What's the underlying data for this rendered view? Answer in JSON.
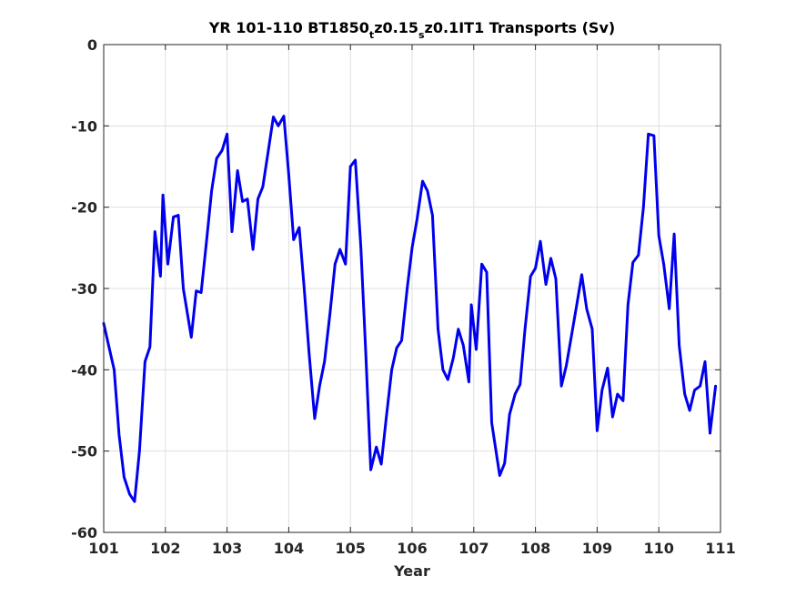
{
  "chart_data": {
    "type": "line",
    "title_parts": [
      "YR 101-110 BT1850",
      "t",
      "z0.15",
      "s",
      "z0.1IT1 Transports (Sv)"
    ],
    "xlabel": "Year",
    "ylabel": "",
    "xlim": [
      101,
      111
    ],
    "ylim": [
      -60,
      0
    ],
    "xticks": [
      101,
      102,
      103,
      104,
      105,
      106,
      107,
      108,
      109,
      110,
      111
    ],
    "yticks": [
      0,
      -10,
      -20,
      -30,
      -40,
      -50,
      -60
    ],
    "grid": true,
    "line_color": "#0000ee",
    "series": [
      {
        "points": [
          [
            101.0,
            -34.3
          ],
          [
            101.08,
            -37.0
          ],
          [
            101.17,
            -40.0
          ],
          [
            101.25,
            -48.0
          ],
          [
            101.33,
            -53.2
          ],
          [
            101.42,
            -55.3
          ],
          [
            101.5,
            -56.2
          ],
          [
            101.58,
            -50.0
          ],
          [
            101.67,
            -39.0
          ],
          [
            101.75,
            -37.2
          ],
          [
            101.83,
            -23.0
          ],
          [
            101.92,
            -28.5
          ],
          [
            101.96,
            -18.5
          ],
          [
            102.04,
            -27.0
          ],
          [
            102.13,
            -21.2
          ],
          [
            102.21,
            -21.0
          ],
          [
            102.29,
            -30.0
          ],
          [
            102.42,
            -36.0
          ],
          [
            102.5,
            -30.3
          ],
          [
            102.58,
            -30.5
          ],
          [
            102.67,
            -24.0
          ],
          [
            102.75,
            -18.0
          ],
          [
            102.83,
            -14.0
          ],
          [
            102.92,
            -13.0
          ],
          [
            103.0,
            -11.0
          ],
          [
            103.08,
            -23.0
          ],
          [
            103.17,
            -15.5
          ],
          [
            103.25,
            -19.3
          ],
          [
            103.33,
            -19.0
          ],
          [
            103.42,
            -25.2
          ],
          [
            103.5,
            -19.0
          ],
          [
            103.58,
            -17.5
          ],
          [
            103.67,
            -13.0
          ],
          [
            103.75,
            -8.9
          ],
          [
            103.83,
            -10.0
          ],
          [
            103.92,
            -8.8
          ],
          [
            104.0,
            -16.0
          ],
          [
            104.08,
            -24.0
          ],
          [
            104.17,
            -22.5
          ],
          [
            104.25,
            -30.0
          ],
          [
            104.33,
            -38.0
          ],
          [
            104.42,
            -46.0
          ],
          [
            104.5,
            -42.0
          ],
          [
            104.58,
            -39.0
          ],
          [
            104.67,
            -33.0
          ],
          [
            104.75,
            -27.0
          ],
          [
            104.83,
            -25.2
          ],
          [
            104.92,
            -27.0
          ],
          [
            105.0,
            -15.0
          ],
          [
            105.08,
            -14.2
          ],
          [
            105.17,
            -25.0
          ],
          [
            105.25,
            -38.0
          ],
          [
            105.33,
            -52.3
          ],
          [
            105.42,
            -49.5
          ],
          [
            105.5,
            -51.6
          ],
          [
            105.58,
            -46.0
          ],
          [
            105.67,
            -40.0
          ],
          [
            105.75,
            -37.3
          ],
          [
            105.83,
            -36.4
          ],
          [
            105.92,
            -30.0
          ],
          [
            106.0,
            -25.0
          ],
          [
            106.08,
            -21.5
          ],
          [
            106.17,
            -16.8
          ],
          [
            106.25,
            -18.0
          ],
          [
            106.33,
            -21.0
          ],
          [
            106.42,
            -35.0
          ],
          [
            106.5,
            -40.0
          ],
          [
            106.58,
            -41.2
          ],
          [
            106.67,
            -38.5
          ],
          [
            106.75,
            -35.0
          ],
          [
            106.83,
            -37.0
          ],
          [
            106.92,
            -41.5
          ],
          [
            106.96,
            -32.0
          ],
          [
            107.04,
            -37.5
          ],
          [
            107.13,
            -27.0
          ],
          [
            107.21,
            -28.0
          ],
          [
            107.29,
            -46.5
          ],
          [
            107.42,
            -53.0
          ],
          [
            107.5,
            -51.5
          ],
          [
            107.58,
            -45.5
          ],
          [
            107.67,
            -43.0
          ],
          [
            107.75,
            -41.8
          ],
          [
            107.83,
            -35.0
          ],
          [
            107.92,
            -28.5
          ],
          [
            108.0,
            -27.5
          ],
          [
            108.08,
            -24.2
          ],
          [
            108.17,
            -29.5
          ],
          [
            108.25,
            -26.3
          ],
          [
            108.33,
            -28.8
          ],
          [
            108.42,
            -42.0
          ],
          [
            108.5,
            -39.5
          ],
          [
            108.58,
            -36.0
          ],
          [
            108.67,
            -32.0
          ],
          [
            108.75,
            -28.3
          ],
          [
            108.83,
            -32.5
          ],
          [
            108.92,
            -35.0
          ],
          [
            109.0,
            -47.5
          ],
          [
            109.08,
            -42.5
          ],
          [
            109.17,
            -39.8
          ],
          [
            109.25,
            -45.8
          ],
          [
            109.33,
            -43.0
          ],
          [
            109.42,
            -43.8
          ],
          [
            109.5,
            -32.0
          ],
          [
            109.58,
            -26.8
          ],
          [
            109.67,
            -25.9
          ],
          [
            109.75,
            -20.0
          ],
          [
            109.83,
            -11.0
          ],
          [
            109.92,
            -11.2
          ],
          [
            110.0,
            -23.5
          ],
          [
            110.08,
            -27.0
          ],
          [
            110.17,
            -32.5
          ],
          [
            110.25,
            -23.3
          ],
          [
            110.33,
            -37.0
          ],
          [
            110.42,
            -43.0
          ],
          [
            110.5,
            -45.0
          ],
          [
            110.58,
            -42.5
          ],
          [
            110.67,
            -42.0
          ],
          [
            110.75,
            -39.0
          ],
          [
            110.83,
            -47.8
          ],
          [
            110.92,
            -42.0
          ]
        ]
      }
    ]
  }
}
